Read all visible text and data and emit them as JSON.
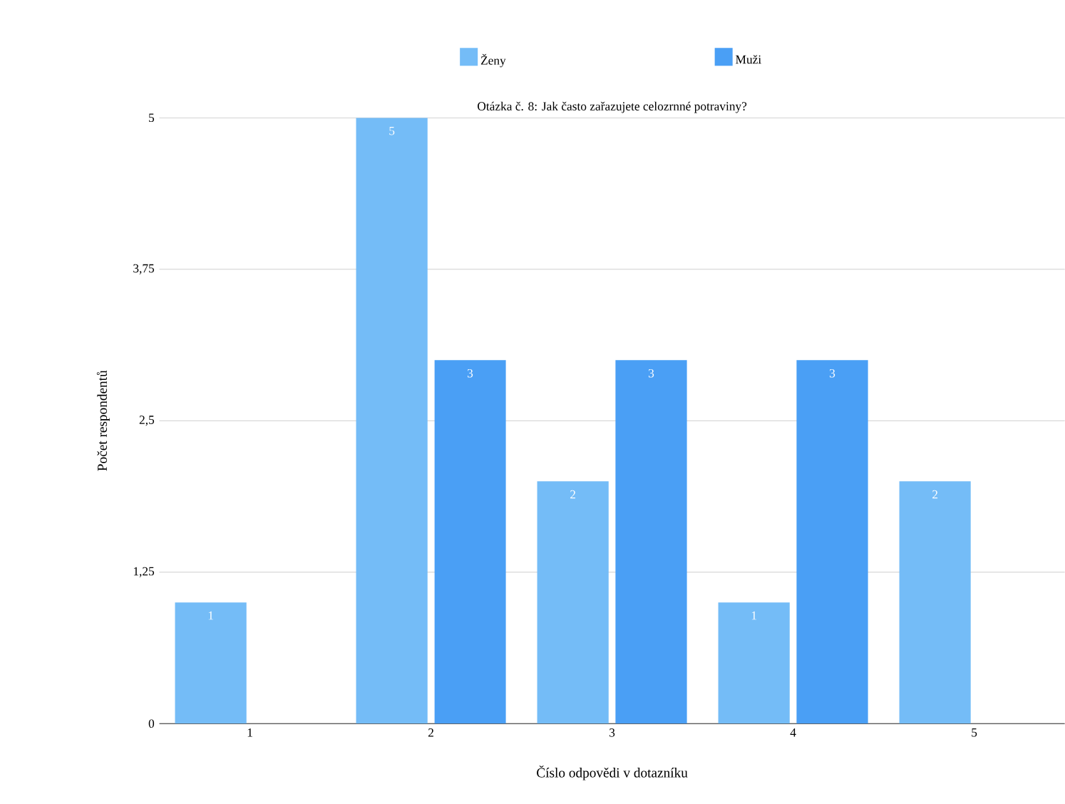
{
  "chart_data": {
    "type": "bar",
    "title": "Otázka č. 8: Jak často zařazujete celozrnné potraviny?",
    "xlabel": "Číslo odpovědi v dotazníku",
    "ylabel": "Počet respondentů",
    "categories": [
      "1",
      "2",
      "3",
      "4",
      "5"
    ],
    "series": [
      {
        "name": "Ženy",
        "color": "#74bcf7",
        "values": [
          1,
          5,
          2,
          1,
          2
        ]
      },
      {
        "name": "Muži",
        "color": "#4a9ff5",
        "values": [
          null,
          3,
          3,
          3,
          null
        ]
      }
    ],
    "ylim": [
      0,
      5
    ],
    "yticks": [
      0,
      {
        "value": 1.25,
        "label": "1,25"
      },
      {
        "value": 2.5,
        "label": "2,5"
      },
      {
        "value": 3.75,
        "label": "3,75"
      },
      5
    ],
    "grid": "y",
    "legend": "top",
    "data_labels": true
  }
}
